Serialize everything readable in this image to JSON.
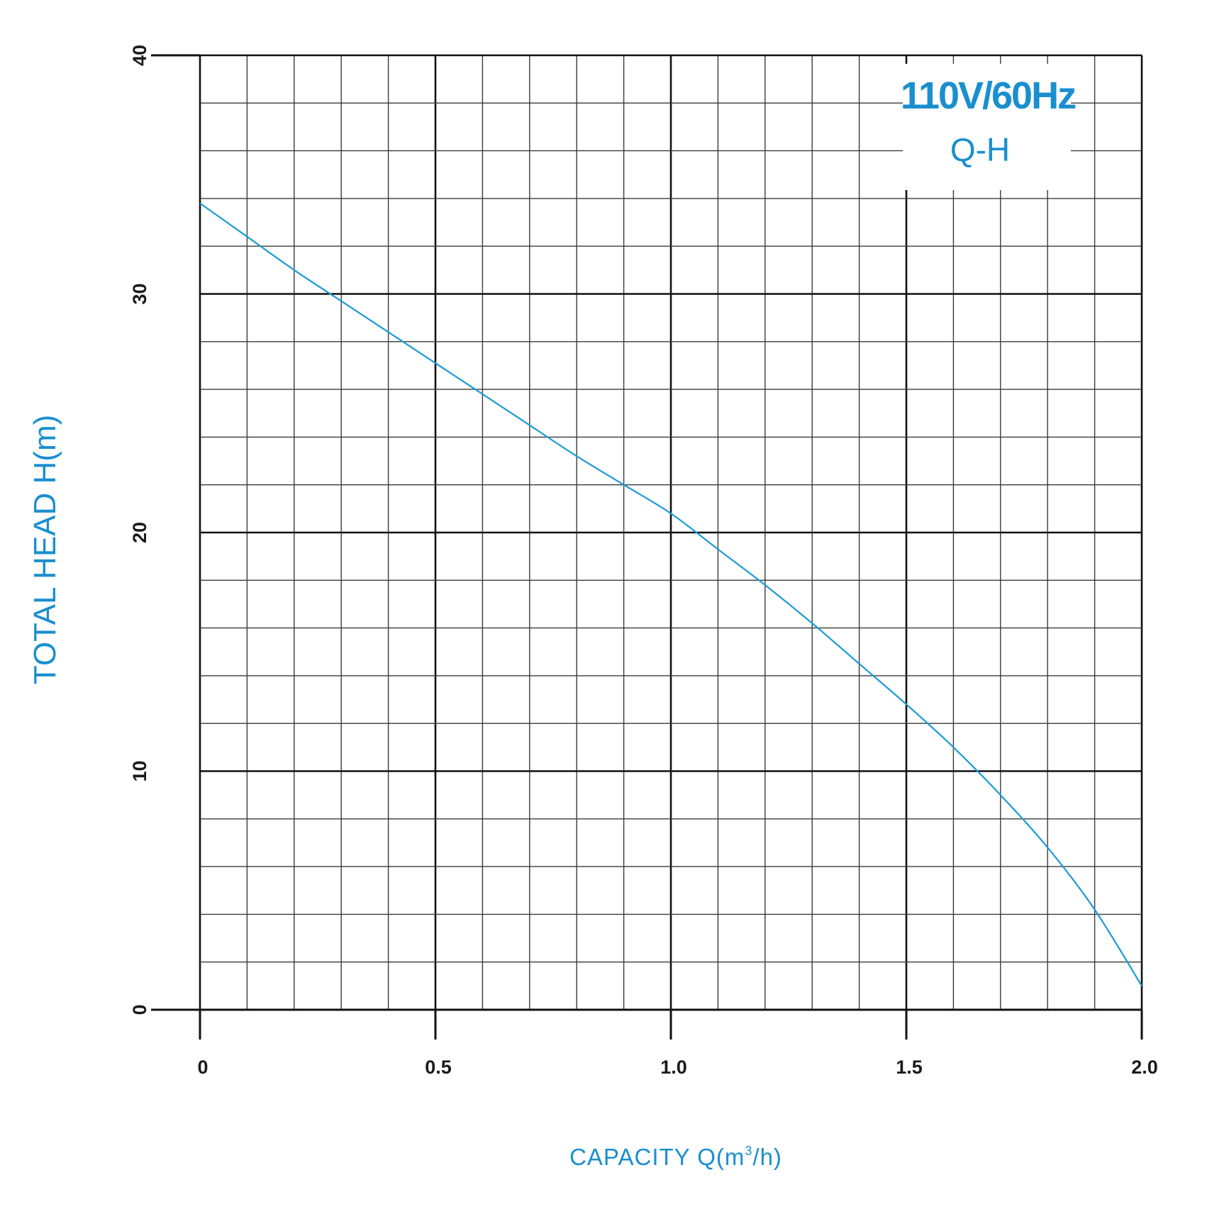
{
  "chart_data": {
    "type": "line",
    "title": "",
    "xlabel": "CAPACITY  Q(m",
    "xlabel_sup": "3",
    "xlabel_end": "/h)",
    "ylabel": "TOTAL HEAD H(m)",
    "xlim": [
      0,
      2.0
    ],
    "ylim": [
      0,
      40
    ],
    "x_ticks": [
      "0",
      "0.5",
      "1.0",
      "1.5",
      "2.0"
    ],
    "y_ticks": [
      "0",
      "10",
      "20",
      "30",
      "40"
    ],
    "grid": true,
    "legend": {
      "placement": "top-right",
      "line1": "110V/60Hz",
      "line2": "Q-H"
    },
    "series": [
      {
        "color": "#1a9bd7",
        "x": [
          0,
          0.1,
          0.2,
          0.3,
          0.4,
          0.5,
          0.6,
          0.7,
          0.8,
          0.9,
          1.0,
          1.1,
          1.2,
          1.3,
          1.4,
          1.5,
          1.6,
          1.7,
          1.8,
          1.9,
          2.0
        ],
        "y": [
          33.8,
          32.4,
          31.0,
          29.7,
          28.4,
          27.1,
          25.8,
          24.5,
          23.2,
          22.0,
          20.8,
          19.3,
          17.8,
          16.2,
          14.5,
          12.8,
          11.0,
          9.0,
          6.8,
          4.2,
          1.0
        ]
      }
    ]
  }
}
